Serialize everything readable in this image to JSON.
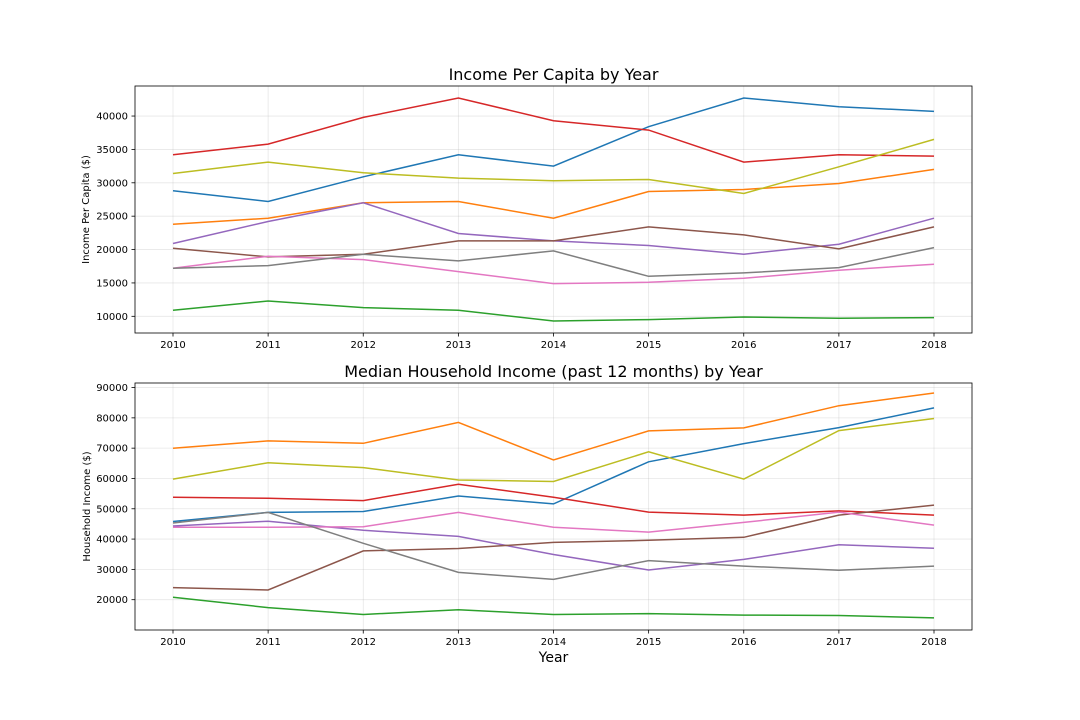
{
  "chart_data": [
    {
      "type": "line",
      "title": "Income Per Capita by Year",
      "xlabel": "",
      "ylabel": "Income Per Capita ($)",
      "x": [
        2010,
        2011,
        2012,
        2013,
        2014,
        2015,
        2016,
        2017,
        2018
      ],
      "xticks": [
        "2010",
        "2011",
        "2012",
        "2013",
        "2014",
        "2015",
        "2016",
        "2017",
        "2018"
      ],
      "yticks": [
        10000,
        15000,
        20000,
        25000,
        30000,
        35000,
        40000
      ],
      "ytick_labels": [
        "10000",
        "15000",
        "20000",
        "25000",
        "30000",
        "35000",
        "40000"
      ],
      "ylim": [
        7500,
        44500
      ],
      "grid": true,
      "series": [
        {
          "color": "#1f77b4",
          "values": [
            28800,
            27200,
            30900,
            34200,
            32500,
            38400,
            42700,
            41400,
            40700
          ]
        },
        {
          "color": "#ff7f0e",
          "values": [
            23800,
            24700,
            27000,
            27200,
            24700,
            28700,
            29000,
            29900,
            32000
          ]
        },
        {
          "color": "#2ca02c",
          "values": [
            10900,
            12300,
            11300,
            10900,
            9300,
            9500,
            9900,
            9700,
            9800
          ]
        },
        {
          "color": "#d62728",
          "values": [
            34200,
            35800,
            39800,
            42700,
            39300,
            37900,
            33100,
            34200,
            34000
          ]
        },
        {
          "color": "#9467bd",
          "values": [
            20900,
            24200,
            27000,
            22400,
            21300,
            20600,
            19300,
            20800,
            24700
          ]
        },
        {
          "color": "#8c564b",
          "values": [
            20200,
            18900,
            19300,
            21300,
            21300,
            23400,
            22200,
            20100,
            23400
          ]
        },
        {
          "color": "#e377c2",
          "values": [
            17200,
            19000,
            18500,
            16700,
            14900,
            15100,
            15700,
            16900,
            17800
          ]
        },
        {
          "color": "#7f7f7f",
          "values": [
            17200,
            17600,
            19300,
            18300,
            19800,
            16000,
            16500,
            17300,
            20300
          ]
        },
        {
          "color": "#bcbd22",
          "values": [
            31400,
            33100,
            31500,
            30700,
            30300,
            30500,
            28400,
            32400,
            36500
          ]
        }
      ]
    },
    {
      "type": "line",
      "title": "Median Household Income (past 12 months) by Year",
      "xlabel": "Year",
      "ylabel": "Household Income ($)",
      "x": [
        2010,
        2011,
        2012,
        2013,
        2014,
        2015,
        2016,
        2017,
        2018
      ],
      "xticks": [
        "2010",
        "2011",
        "2012",
        "2013",
        "2014",
        "2015",
        "2016",
        "2017",
        "2018"
      ],
      "yticks": [
        20000,
        30000,
        40000,
        50000,
        60000,
        70000,
        80000,
        90000
      ],
      "ytick_labels": [
        "20000",
        "30000",
        "40000",
        "50000",
        "60000",
        "70000",
        "80000",
        "90000"
      ],
      "ylim": [
        10000,
        91500
      ],
      "grid": true,
      "series": [
        {
          "color": "#1f77b4",
          "values": [
            45800,
            48800,
            49100,
            54200,
            51600,
            65500,
            71500,
            76800,
            83300
          ]
        },
        {
          "color": "#ff7f0e",
          "values": [
            70000,
            72400,
            71600,
            78500,
            66100,
            75700,
            76700,
            84000,
            88200
          ]
        },
        {
          "color": "#2ca02c",
          "values": [
            20800,
            17400,
            15100,
            16700,
            15100,
            15400,
            14900,
            14800,
            14000
          ]
        },
        {
          "color": "#d62728",
          "values": [
            53800,
            53500,
            52700,
            58100,
            53800,
            48900,
            47900,
            49300,
            47900
          ]
        },
        {
          "color": "#9467bd",
          "values": [
            44300,
            45900,
            42900,
            40900,
            34900,
            29800,
            33300,
            38100,
            37000
          ]
        },
        {
          "color": "#8c564b",
          "values": [
            24000,
            23200,
            36100,
            36900,
            38900,
            39600,
            40600,
            47900,
            51200
          ]
        },
        {
          "color": "#e377c2",
          "values": [
            43900,
            43900,
            44100,
            48800,
            43900,
            42300,
            45500,
            48900,
            44600
          ]
        },
        {
          "color": "#7f7f7f",
          "values": [
            45300,
            48800,
            38600,
            29000,
            26700,
            32900,
            31100,
            29700,
            31100
          ]
        },
        {
          "color": "#bcbd22",
          "values": [
            59800,
            65200,
            63600,
            59500,
            59000,
            68800,
            59800,
            75800,
            79800
          ]
        }
      ]
    }
  ]
}
